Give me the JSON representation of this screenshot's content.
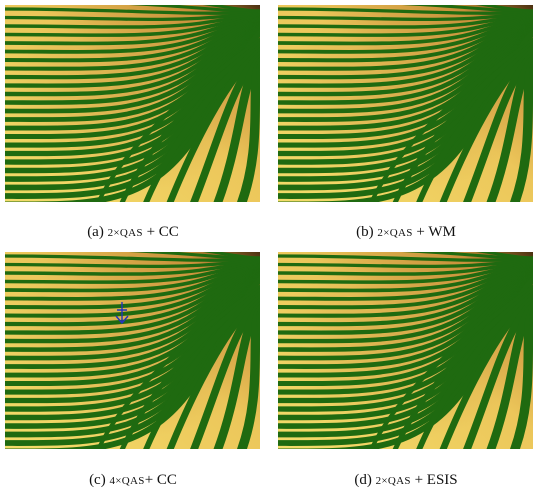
{
  "figures": [
    {
      "label": "(a)",
      "method": "2×QAS",
      "suffix": "+ CC"
    },
    {
      "label": "(b)",
      "method": "2×QAS",
      "suffix": "+ WM"
    },
    {
      "label": "(c)",
      "method": "4×QAS",
      "suffix": "+ CC"
    },
    {
      "label": "(d)",
      "method": "2×QAS",
      "suffix": "+ ESIS"
    }
  ]
}
